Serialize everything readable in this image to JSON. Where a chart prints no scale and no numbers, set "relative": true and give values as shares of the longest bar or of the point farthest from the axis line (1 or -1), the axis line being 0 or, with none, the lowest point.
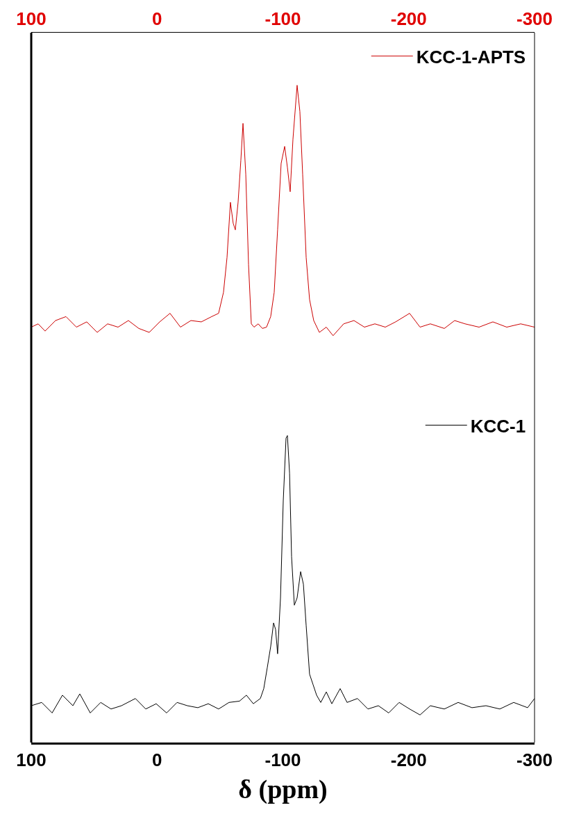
{
  "chart_data": {
    "type": "line",
    "relative": true,
    "xlabel": "δ (ppm)",
    "xlim": [
      100,
      -300
    ],
    "xticks": [
      100,
      0,
      -100,
      -200,
      -300
    ],
    "x2lim": [
      100,
      -300
    ],
    "x2ticks": [
      100,
      0,
      -100,
      -200,
      -300
    ],
    "legend": "top right",
    "marker": "none",
    "line_style": "solid",
    "series": [
      {
        "name": "KCC-1-APTS",
        "color": "#cc0000",
        "x": [
          100,
          94.5,
          89,
          80.7,
          72.4,
          64.1,
          55.9,
          47.6,
          39.3,
          31,
          22.8,
          14.5,
          6.2,
          -2.1,
          -10.3,
          -18.6,
          -26.9,
          -35.2,
          -43.4,
          -48.9,
          -52.8,
          -55.6,
          -58.3,
          -60.5,
          -62.2,
          -64.4,
          -66.6,
          -68.3,
          -70.5,
          -72.7,
          -74.9,
          -77.1,
          -80.4,
          -83.7,
          -87.0,
          -90.3,
          -93.1,
          -95.8,
          -98.6,
          -101.4,
          -103.6,
          -105.8,
          -108.0,
          -111.3,
          -113.5,
          -115.7,
          -118.5,
          -121.2,
          -124.5,
          -129.0,
          -134.5,
          -139.9,
          -148.3,
          -156.5,
          -164.8,
          -173.1,
          -181.4,
          -189.6,
          -200.7,
          -209.0,
          -217.2,
          -228.3,
          -236.5,
          -244.8,
          -255.9,
          -266.9,
          -277.9,
          -289.0,
          -300
        ],
        "values": [
          0.632,
          0.637,
          0.626,
          0.642,
          0.648,
          0.632,
          0.64,
          0.624,
          0.637,
          0.632,
          0.642,
          0.63,
          0.624,
          0.64,
          0.653,
          0.632,
          0.642,
          0.64,
          0.648,
          0.653,
          0.685,
          0.738,
          0.822,
          0.79,
          0.78,
          0.822,
          0.886,
          0.942,
          0.865,
          0.727,
          0.637,
          0.632,
          0.637,
          0.63,
          0.632,
          0.648,
          0.685,
          0.78,
          0.881,
          0.907,
          0.875,
          0.838,
          0.918,
          1.0,
          0.96,
          0.865,
          0.738,
          0.674,
          0.642,
          0.624,
          0.632,
          0.619,
          0.637,
          0.642,
          0.632,
          0.637,
          0.632,
          0.64,
          0.653,
          0.632,
          0.637,
          0.63,
          0.642,
          0.637,
          0.632,
          0.64,
          0.632,
          0.637,
          0.632
        ]
      },
      {
        "name": "KCC-1",
        "color": "#000000",
        "x": [
          100,
          91.7,
          83.4,
          75.2,
          66.9,
          61.4,
          53.1,
          44.8,
          36.6,
          28.3,
          17.2,
          9.0,
          0.7,
          -7.6,
          -15.9,
          -24.1,
          -32.4,
          -40.7,
          -48.9,
          -57.2,
          -65.5,
          -71.0,
          -76.5,
          -82.1,
          -84.8,
          -87.6,
          -90.3,
          -92.6,
          -94.2,
          -95.8,
          -98.1,
          -100.3,
          -102.5,
          -103.6,
          -105.3,
          -106.9,
          -109.1,
          -111.3,
          -114.1,
          -116.3,
          -118.5,
          -121.2,
          -124.0,
          -126.8,
          -130.1,
          -134.5,
          -138.9,
          -145.5,
          -151.0,
          -159.3,
          -167.6,
          -175.9,
          -184.1,
          -192.4,
          -200.7,
          -209.0,
          -217.2,
          -228.3,
          -239.3,
          -250.3,
          -261.4,
          -272.4,
          -283.4,
          -294.5,
          -300
        ],
        "values": [
          0.056,
          0.061,
          0.045,
          0.072,
          0.056,
          0.074,
          0.045,
          0.061,
          0.051,
          0.056,
          0.067,
          0.051,
          0.059,
          0.045,
          0.061,
          0.056,
          0.053,
          0.059,
          0.051,
          0.061,
          0.063,
          0.072,
          0.059,
          0.067,
          0.082,
          0.114,
          0.146,
          0.182,
          0.172,
          0.135,
          0.22,
          0.368,
          0.463,
          0.467,
          0.41,
          0.283,
          0.209,
          0.22,
          0.26,
          0.241,
          0.178,
          0.104,
          0.088,
          0.072,
          0.061,
          0.077,
          0.059,
          0.082,
          0.061,
          0.067,
          0.051,
          0.056,
          0.045,
          0.061,
          0.051,
          0.042,
          0.056,
          0.051,
          0.061,
          0.053,
          0.056,
          0.051,
          0.061,
          0.053,
          0.067
        ]
      }
    ]
  }
}
